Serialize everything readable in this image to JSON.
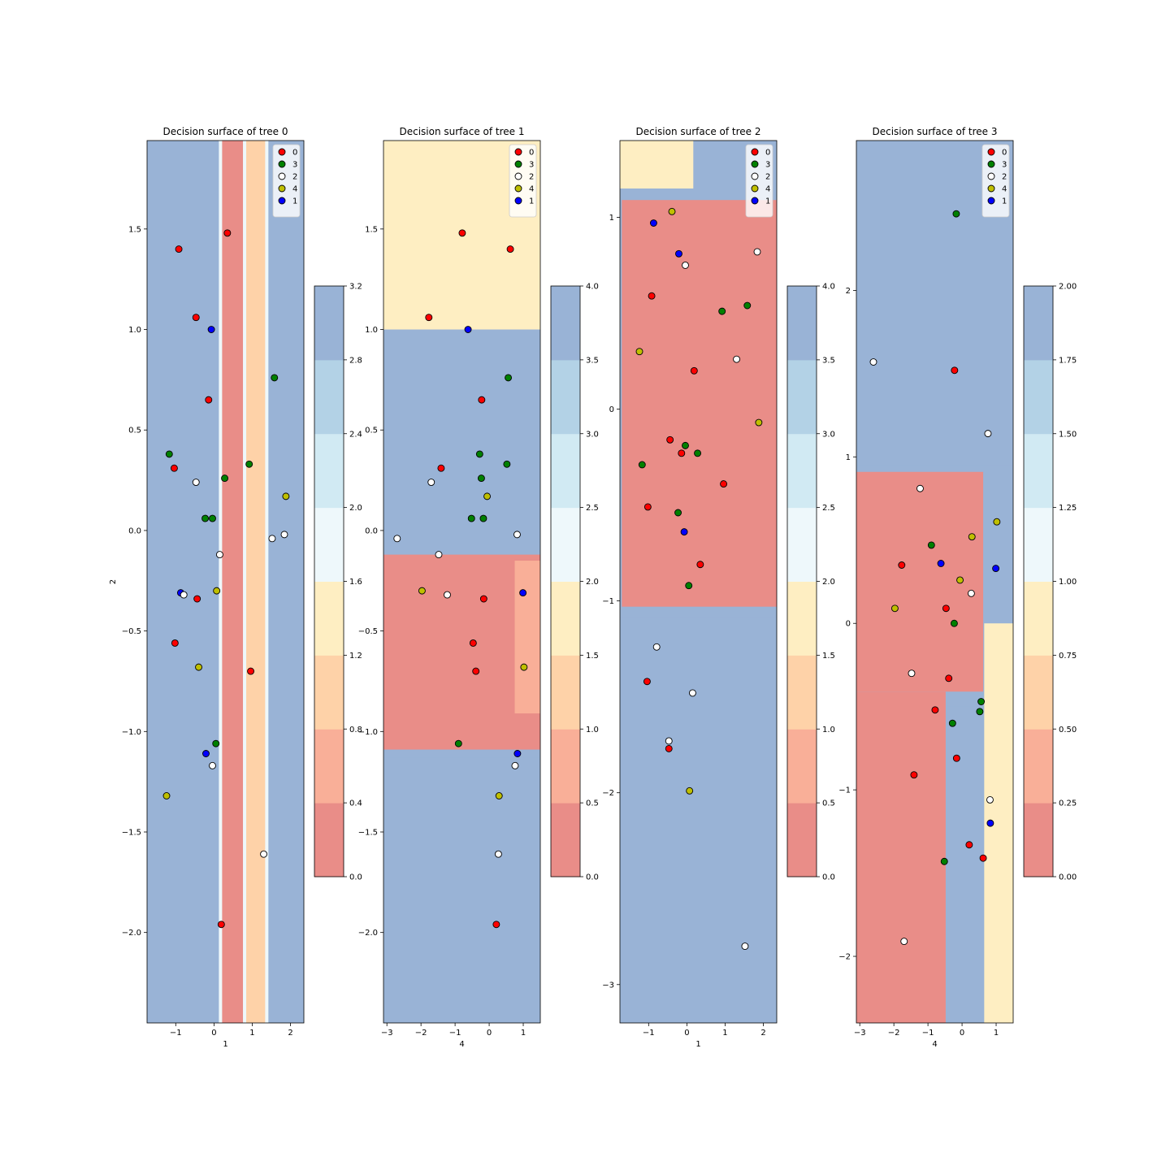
{
  "figure": {
    "background": "#ffffff"
  },
  "chart_data": [
    {
      "type": "scatter",
      "title": "Decision surface of tree 0",
      "xlabel": "1",
      "ylabel": "2",
      "xlim": [
        -1.75,
        2.35
      ],
      "ylim": [
        -2.45,
        1.94
      ],
      "xticks": [
        -1,
        0,
        1,
        2
      ],
      "xtick_labels": [
        "−1",
        "0",
        "1",
        "2"
      ],
      "yticks": [
        -2.0,
        -1.5,
        -1.0,
        -0.5,
        0.0,
        0.5,
        1.0,
        1.5
      ],
      "ytick_labels": [
        "−2.0",
        "−1.5",
        "−1.0",
        "−0.5",
        "0.0",
        "0.5",
        "1.0",
        "1.5"
      ],
      "surface": {
        "direction": "vertical",
        "bands": [
          {
            "from": -1.75,
            "to": 0.17,
            "value": 3
          },
          {
            "from": 0.17,
            "to": 0.8,
            "value": 0
          },
          {
            "from": 0.8,
            "to": 1.38,
            "value": 1
          },
          {
            "from": 1.38,
            "to": 2.35,
            "value": 3
          }
        ]
      },
      "colorbar": {
        "levels": [
          0.0,
          0.4,
          0.8,
          1.2,
          1.6,
          2.0,
          2.4,
          2.8,
          3.2
        ],
        "tick_labels": [
          "0.0",
          "0.4",
          "0.8",
          "1.2",
          "1.6",
          "2.0",
          "2.4",
          "2.8",
          "3.2"
        ]
      },
      "legend": {
        "position": "top-right",
        "entries": [
          "0",
          "3",
          "2",
          "4",
          "1"
        ]
      },
      "points": [
        {
          "x": -0.92,
          "y": 1.4,
          "c": "0"
        },
        {
          "x": 0.35,
          "y": 1.48,
          "c": "0"
        },
        {
          "x": -0.47,
          "y": 1.06,
          "c": "0"
        },
        {
          "x": -0.07,
          "y": 1.0,
          "c": "1"
        },
        {
          "x": 1.58,
          "y": 0.76,
          "c": "3"
        },
        {
          "x": -0.14,
          "y": 0.65,
          "c": "0"
        },
        {
          "x": -1.17,
          "y": 0.38,
          "c": "3"
        },
        {
          "x": -1.04,
          "y": 0.31,
          "c": "0"
        },
        {
          "x": 0.92,
          "y": 0.33,
          "c": "3"
        },
        {
          "x": 0.28,
          "y": 0.26,
          "c": "3"
        },
        {
          "x": -0.47,
          "y": 0.24,
          "c": "2"
        },
        {
          "x": 1.88,
          "y": 0.17,
          "c": "4"
        },
        {
          "x": -0.23,
          "y": 0.06,
          "c": "3"
        },
        {
          "x": -0.04,
          "y": 0.06,
          "c": "3"
        },
        {
          "x": 1.52,
          "y": -0.04,
          "c": "2"
        },
        {
          "x": 1.84,
          "y": -0.02,
          "c": "2"
        },
        {
          "x": 0.15,
          "y": -0.12,
          "c": "2"
        },
        {
          "x": 0.07,
          "y": -0.3,
          "c": "4"
        },
        {
          "x": -0.87,
          "y": -0.31,
          "c": "1"
        },
        {
          "x": -0.79,
          "y": -0.32,
          "c": "2"
        },
        {
          "x": -0.44,
          "y": -0.34,
          "c": "0"
        },
        {
          "x": -1.02,
          "y": -0.56,
          "c": "0"
        },
        {
          "x": -0.4,
          "y": -0.68,
          "c": "4"
        },
        {
          "x": 0.96,
          "y": -0.7,
          "c": "0"
        },
        {
          "x": 0.05,
          "y": -1.06,
          "c": "3"
        },
        {
          "x": -0.21,
          "y": -1.11,
          "c": "1"
        },
        {
          "x": -0.04,
          "y": -1.17,
          "c": "2"
        },
        {
          "x": -1.24,
          "y": -1.32,
          "c": "4"
        },
        {
          "x": 1.3,
          "y": -1.61,
          "c": "2"
        },
        {
          "x": 0.19,
          "y": -1.96,
          "c": "0"
        }
      ]
    },
    {
      "type": "scatter",
      "title": "Decision surface of tree 1",
      "xlabel": "4",
      "ylabel": "",
      "xlim": [
        -3.1,
        1.5
      ],
      "ylim": [
        -2.45,
        1.94
      ],
      "xticks": [
        -3,
        -2,
        -1,
        0,
        1
      ],
      "xtick_labels": [
        "−3",
        "−2",
        "−1",
        "0",
        "1"
      ],
      "yticks": [
        -2.0,
        -1.5,
        -1.0,
        -0.5,
        0.0,
        0.5,
        1.0,
        1.5
      ],
      "ytick_labels": [
        "−2.0",
        "−1.5",
        "−1.0",
        "−0.5",
        "0.0",
        "0.5",
        "1.0",
        "1.5"
      ],
      "surface": {
        "direction": "regions",
        "background": 4,
        "regions": [
          {
            "x0": -3.1,
            "x1": 1.5,
            "y0": 1.0,
            "y1": 1.94,
            "value": 2
          },
          {
            "x0": -3.1,
            "x1": 1.5,
            "y0": -0.12,
            "y1": 0.97,
            "value": 4
          },
          {
            "x0": -3.1,
            "x1": 1.5,
            "y0": -1.09,
            "y1": -0.12,
            "value": 0
          },
          {
            "x0": 0.75,
            "x1": 1.5,
            "y0": -0.91,
            "y1": -0.15,
            "value": 1
          },
          {
            "x0": -3.1,
            "x1": 1.5,
            "y0": -2.45,
            "y1": -1.13,
            "value": 4
          }
        ]
      },
      "colorbar": {
        "levels": [
          0.0,
          0.5,
          1.0,
          1.5,
          2.0,
          2.5,
          3.0,
          3.5,
          4.0
        ],
        "tick_labels": [
          "0.0",
          "0.5",
          "1.0",
          "1.5",
          "2.0",
          "2.5",
          "3.0",
          "3.5",
          "4.0"
        ]
      },
      "legend": {
        "position": "top-right",
        "entries": [
          "0",
          "3",
          "2",
          "4",
          "1"
        ]
      },
      "points": [
        {
          "x": -0.79,
          "y": 1.48,
          "c": "0"
        },
        {
          "x": 0.62,
          "y": 1.4,
          "c": "0"
        },
        {
          "x": -1.77,
          "y": 1.06,
          "c": "0"
        },
        {
          "x": -0.62,
          "y": 1.0,
          "c": "1"
        },
        {
          "x": 0.56,
          "y": 0.76,
          "c": "3"
        },
        {
          "x": -0.22,
          "y": 0.65,
          "c": "0"
        },
        {
          "x": -0.28,
          "y": 0.38,
          "c": "3"
        },
        {
          "x": 0.52,
          "y": 0.33,
          "c": "3"
        },
        {
          "x": -1.41,
          "y": 0.31,
          "c": "0"
        },
        {
          "x": -0.23,
          "y": 0.26,
          "c": "3"
        },
        {
          "x": -1.7,
          "y": 0.24,
          "c": "2"
        },
        {
          "x": -0.06,
          "y": 0.17,
          "c": "4"
        },
        {
          "x": -0.52,
          "y": 0.06,
          "c": "3"
        },
        {
          "x": -0.17,
          "y": 0.06,
          "c": "3"
        },
        {
          "x": 0.82,
          "y": -0.02,
          "c": "2"
        },
        {
          "x": -2.7,
          "y": -0.04,
          "c": "2"
        },
        {
          "x": -1.48,
          "y": -0.12,
          "c": "2"
        },
        {
          "x": -1.97,
          "y": -0.3,
          "c": "4"
        },
        {
          "x": 0.99,
          "y": -0.31,
          "c": "1"
        },
        {
          "x": -1.23,
          "y": -0.32,
          "c": "2"
        },
        {
          "x": -0.16,
          "y": -0.34,
          "c": "0"
        },
        {
          "x": -0.47,
          "y": -0.56,
          "c": "0"
        },
        {
          "x": 1.02,
          "y": -0.68,
          "c": "4"
        },
        {
          "x": -0.39,
          "y": -0.7,
          "c": "0"
        },
        {
          "x": -0.9,
          "y": -1.06,
          "c": "3"
        },
        {
          "x": 0.83,
          "y": -1.11,
          "c": "1"
        },
        {
          "x": 0.76,
          "y": -1.17,
          "c": "2"
        },
        {
          "x": 0.29,
          "y": -1.32,
          "c": "4"
        },
        {
          "x": 0.27,
          "y": -1.61,
          "c": "2"
        },
        {
          "x": 0.21,
          "y": -1.96,
          "c": "0"
        }
      ]
    },
    {
      "type": "scatter",
      "title": "Decision surface of tree 2",
      "xlabel": "1",
      "ylabel": "",
      "xlim": [
        -1.75,
        2.35
      ],
      "ylim": [
        -3.2,
        1.4
      ],
      "xticks": [
        -1,
        0,
        1,
        2
      ],
      "xtick_labels": [
        "−1",
        "0",
        "1",
        "2"
      ],
      "yticks": [
        -3,
        -2,
        -1,
        0,
        1
      ],
      "ytick_labels": [
        "−3",
        "−2",
        "−1",
        "0",
        "1"
      ],
      "surface": {
        "direction": "regions",
        "background": 4,
        "regions": [
          {
            "x0": -1.75,
            "x1": 0.17,
            "y0": 1.15,
            "y1": 1.4,
            "value": 2
          },
          {
            "x0": 0.17,
            "x1": 2.35,
            "y0": 1.15,
            "y1": 1.4,
            "value": 4
          },
          {
            "x0": -1.7,
            "x1": 2.35,
            "y0": -1.03,
            "y1": 1.09,
            "value": 0
          },
          {
            "x0": -1.75,
            "x1": 2.35,
            "y0": -3.2,
            "y1": -1.09,
            "value": 4
          }
        ]
      },
      "colorbar": {
        "levels": [
          0.0,
          0.5,
          1.0,
          1.5,
          2.0,
          2.5,
          3.0,
          3.5,
          4.0
        ],
        "tick_labels": [
          "0.0",
          "0.5",
          "1.0",
          "1.5",
          "2.0",
          "2.5",
          "3.0",
          "3.5",
          "4.0"
        ]
      },
      "legend": {
        "position": "top-right",
        "entries": [
          "0",
          "3",
          "2",
          "4",
          "1"
        ]
      },
      "points": [
        {
          "x": -0.39,
          "y": 1.03,
          "c": "4"
        },
        {
          "x": -0.87,
          "y": 0.97,
          "c": "1"
        },
        {
          "x": -0.21,
          "y": 0.81,
          "c": "1"
        },
        {
          "x": 1.84,
          "y": 0.82,
          "c": "2"
        },
        {
          "x": -0.04,
          "y": 0.75,
          "c": "2"
        },
        {
          "x": -0.92,
          "y": 0.59,
          "c": "0"
        },
        {
          "x": 1.58,
          "y": 0.54,
          "c": "3"
        },
        {
          "x": 0.92,
          "y": 0.51,
          "c": "3"
        },
        {
          "x": -1.24,
          "y": 0.3,
          "c": "4"
        },
        {
          "x": 1.3,
          "y": 0.26,
          "c": "2"
        },
        {
          "x": 0.19,
          "y": 0.2,
          "c": "0"
        },
        {
          "x": 1.88,
          "y": -0.07,
          "c": "4"
        },
        {
          "x": -0.44,
          "y": -0.16,
          "c": "0"
        },
        {
          "x": -0.04,
          "y": -0.19,
          "c": "3"
        },
        {
          "x": -0.14,
          "y": -0.23,
          "c": "0"
        },
        {
          "x": 0.28,
          "y": -0.23,
          "c": "3"
        },
        {
          "x": -1.17,
          "y": -0.29,
          "c": "3"
        },
        {
          "x": 0.96,
          "y": -0.39,
          "c": "0"
        },
        {
          "x": -1.02,
          "y": -0.51,
          "c": "0"
        },
        {
          "x": -0.23,
          "y": -0.54,
          "c": "3"
        },
        {
          "x": -0.07,
          "y": -0.64,
          "c": "1"
        },
        {
          "x": 0.35,
          "y": -0.81,
          "c": "0"
        },
        {
          "x": 0.05,
          "y": -0.92,
          "c": "3"
        },
        {
          "x": -0.79,
          "y": -1.24,
          "c": "2"
        },
        {
          "x": -1.04,
          "y": -1.42,
          "c": "0"
        },
        {
          "x": 0.15,
          "y": -1.48,
          "c": "2"
        },
        {
          "x": -0.47,
          "y": -1.73,
          "c": "2"
        },
        {
          "x": -0.47,
          "y": -1.77,
          "c": "0"
        },
        {
          "x": 0.07,
          "y": -1.99,
          "c": "4"
        },
        {
          "x": 1.52,
          "y": -2.8,
          "c": "2"
        }
      ]
    },
    {
      "type": "scatter",
      "title": "Decision surface of tree 3",
      "xlabel": "4",
      "ylabel": "",
      "xlim": [
        -3.1,
        1.5
      ],
      "ylim": [
        -2.4,
        2.9
      ],
      "xticks": [
        -3,
        -2,
        -1,
        0,
        1
      ],
      "xtick_labels": [
        "−3",
        "−2",
        "−1",
        "0",
        "1"
      ],
      "yticks": [
        -2,
        -1,
        0,
        1,
        2
      ],
      "ytick_labels": [
        "−2",
        "−1",
        "0",
        "1",
        "2"
      ],
      "surface": {
        "direction": "regions",
        "background": 2,
        "regions": [
          {
            "x0": -3.1,
            "x1": 1.5,
            "y0": 0.95,
            "y1": 2.9,
            "value": 2
          },
          {
            "x0": 0.68,
            "x1": 1.5,
            "y0": 0.06,
            "y1": 0.95,
            "value": 2
          },
          {
            "x0": -3.1,
            "x1": 0.62,
            "y0": -0.41,
            "y1": 0.91,
            "value": 0
          },
          {
            "x0": -3.1,
            "x1": -0.48,
            "y0": -2.4,
            "y1": -0.41,
            "value": 0
          },
          {
            "x0": -0.45,
            "x1": 0.62,
            "y0": -2.4,
            "y1": -0.5,
            "value": 2
          },
          {
            "x0": 0.65,
            "x1": 1.5,
            "y0": -2.4,
            "y1": 0.0,
            "value": 1
          }
        ]
      },
      "colorbar": {
        "levels": [
          0.0,
          0.25,
          0.5,
          0.75,
          1.0,
          1.25,
          1.5,
          1.75,
          2.0
        ],
        "tick_labels": [
          "0.00",
          "0.25",
          "0.50",
          "0.75",
          "1.00",
          "1.25",
          "1.50",
          "1.75",
          "2.00"
        ]
      },
      "legend": {
        "position": "top-right",
        "entries": [
          "0",
          "3",
          "2",
          "4",
          "1"
        ]
      },
      "points": [
        {
          "x": -0.17,
          "y": 2.46,
          "c": "3"
        },
        {
          "x": -2.6,
          "y": 1.57,
          "c": "2"
        },
        {
          "x": -0.22,
          "y": 1.52,
          "c": "0"
        },
        {
          "x": 0.76,
          "y": 1.14,
          "c": "2"
        },
        {
          "x": -1.23,
          "y": 0.81,
          "c": "2"
        },
        {
          "x": 1.02,
          "y": 0.61,
          "c": "4"
        },
        {
          "x": 0.29,
          "y": 0.52,
          "c": "4"
        },
        {
          "x": -0.9,
          "y": 0.47,
          "c": "3"
        },
        {
          "x": -1.77,
          "y": 0.35,
          "c": "0"
        },
        {
          "x": -0.62,
          "y": 0.36,
          "c": "1"
        },
        {
          "x": 0.99,
          "y": 0.33,
          "c": "1"
        },
        {
          "x": -0.06,
          "y": 0.26,
          "c": "4"
        },
        {
          "x": 0.27,
          "y": 0.18,
          "c": "2"
        },
        {
          "x": -1.97,
          "y": 0.09,
          "c": "4"
        },
        {
          "x": -0.47,
          "y": 0.09,
          "c": "0"
        },
        {
          "x": -0.23,
          "y": 0.0,
          "c": "3"
        },
        {
          "x": -1.48,
          "y": -0.3,
          "c": "2"
        },
        {
          "x": -0.39,
          "y": -0.33,
          "c": "0"
        },
        {
          "x": 0.56,
          "y": -0.47,
          "c": "3"
        },
        {
          "x": -0.79,
          "y": -0.52,
          "c": "0"
        },
        {
          "x": 0.52,
          "y": -0.53,
          "c": "3"
        },
        {
          "x": -0.28,
          "y": -0.6,
          "c": "3"
        },
        {
          "x": -0.16,
          "y": -0.81,
          "c": "0"
        },
        {
          "x": -1.41,
          "y": -0.91,
          "c": "0"
        },
        {
          "x": 0.82,
          "y": -1.06,
          "c": "2"
        },
        {
          "x": 0.83,
          "y": -1.2,
          "c": "1"
        },
        {
          "x": 0.21,
          "y": -1.33,
          "c": "0"
        },
        {
          "x": -0.52,
          "y": -1.43,
          "c": "3"
        },
        {
          "x": 0.62,
          "y": -1.41,
          "c": "0"
        },
        {
          "x": -1.7,
          "y": -1.91,
          "c": "2"
        }
      ]
    }
  ],
  "class_colors": {
    "0": "#ff0000",
    "3": "#008000",
    "2": "#ffffff",
    "4": "#bfbf00",
    "1": "#0000ff"
  },
  "palette": [
    "#d73027",
    "#f46d43",
    "#fdae61",
    "#fee090",
    "#e0f3f8",
    "#abd9e9",
    "#74add1",
    "#4575b4"
  ],
  "surface_alpha": 0.55
}
